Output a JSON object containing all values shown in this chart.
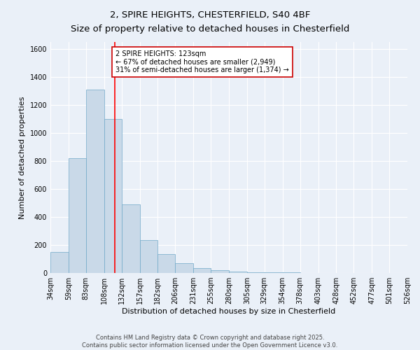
{
  "title_line1": "2, SPIRE HEIGHTS, CHESTERFIELD, S40 4BF",
  "title_line2": "Size of property relative to detached houses in Chesterfield",
  "xlabel": "Distribution of detached houses by size in Chesterfield",
  "ylabel": "Number of detached properties",
  "bin_edges": [
    34,
    59,
    83,
    108,
    132,
    157,
    182,
    206,
    231,
    255,
    280,
    305,
    329,
    354,
    378,
    403,
    428,
    452,
    477,
    501,
    526
  ],
  "bar_heights": [
    150,
    820,
    1310,
    1100,
    490,
    235,
    135,
    70,
    35,
    20,
    10,
    5,
    5,
    5,
    0,
    0,
    0,
    0,
    0,
    0
  ],
  "bar_color": "#c9d9e8",
  "bar_edge_color": "#6fa8c8",
  "background_color": "#eaf0f8",
  "grid_color": "#ffffff",
  "red_line_x": 123,
  "ylim": [
    0,
    1650
  ],
  "yticks": [
    0,
    200,
    400,
    600,
    800,
    1000,
    1200,
    1400,
    1600
  ],
  "annotation_text": "2 SPIRE HEIGHTS: 123sqm\n← 67% of detached houses are smaller (2,949)\n31% of semi-detached houses are larger (1,374) →",
  "annotation_box_color": "#ffffff",
  "annotation_box_edge": "#cc0000",
  "footer_text": "Contains HM Land Registry data © Crown copyright and database right 2025.\nContains public sector information licensed under the Open Government Licence v3.0.",
  "title_fontsize": 9.5,
  "axis_label_fontsize": 8,
  "tick_fontsize": 7,
  "annotation_fontsize": 7,
  "ylabel_fontsize": 8
}
